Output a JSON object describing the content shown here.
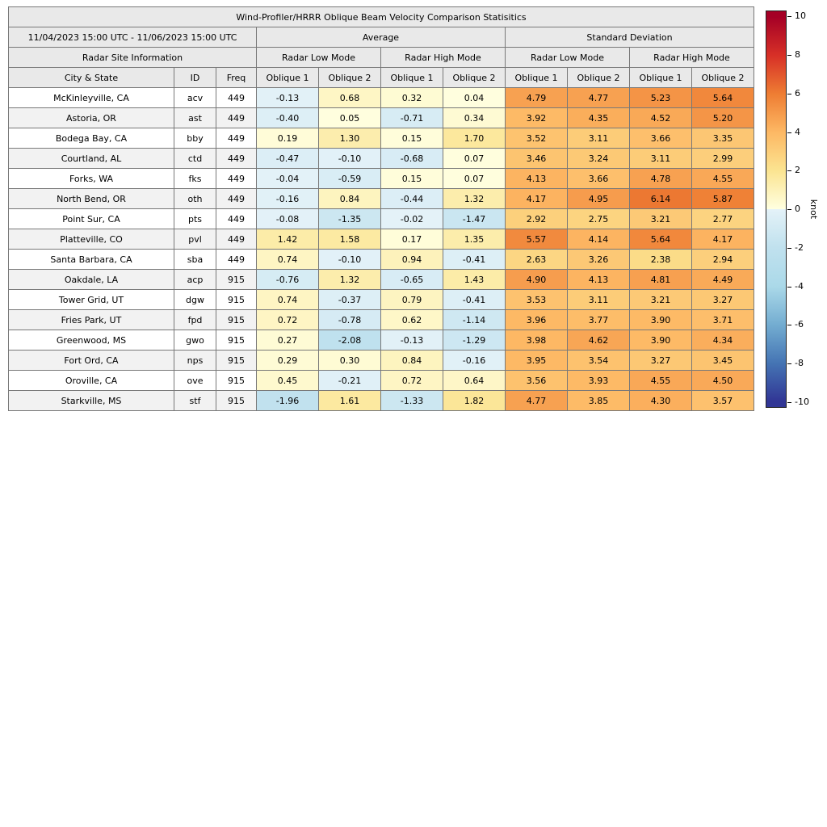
{
  "chart_data": {
    "type": "heatmap",
    "title": "Wind-Profiler/HRRR Oblique Beam Velocity Comparison Statisitics",
    "date_range": "11/04/2023 15:00 UTC - 11/06/2023 15:00 UTC",
    "headers": {
      "average": "Average",
      "standard_deviation": "Standard Deviation",
      "site_info": "Radar Site Information",
      "low_mode": "Radar Low Mode",
      "high_mode": "Radar High Mode",
      "city": "City & State",
      "id": "ID",
      "freq": "Freq",
      "oblique1": "Oblique 1",
      "oblique2": "Oblique 2"
    },
    "rows": [
      {
        "city": "McKinleyville, CA",
        "id": "acv",
        "freq": "449",
        "values": [
          -0.13,
          0.68,
          0.32,
          0.04,
          4.79,
          4.77,
          5.23,
          5.64
        ]
      },
      {
        "city": "Astoria, OR",
        "id": "ast",
        "freq": "449",
        "values": [
          -0.4,
          0.05,
          -0.71,
          0.34,
          3.92,
          4.35,
          4.52,
          5.2
        ]
      },
      {
        "city": "Bodega Bay, CA",
        "id": "bby",
        "freq": "449",
        "values": [
          0.19,
          1.3,
          0.15,
          1.7,
          3.52,
          3.11,
          3.66,
          3.35
        ]
      },
      {
        "city": "Courtland, AL",
        "id": "ctd",
        "freq": "449",
        "values": [
          -0.47,
          -0.1,
          -0.68,
          0.07,
          3.46,
          3.24,
          3.11,
          2.99
        ]
      },
      {
        "city": "Forks, WA",
        "id": "fks",
        "freq": "449",
        "values": [
          -0.04,
          -0.59,
          0.15,
          0.07,
          4.13,
          3.66,
          4.78,
          4.55
        ]
      },
      {
        "city": "North Bend, OR",
        "id": "oth",
        "freq": "449",
        "values": [
          -0.16,
          0.84,
          -0.44,
          1.32,
          4.17,
          4.95,
          6.14,
          5.87
        ]
      },
      {
        "city": "Point Sur, CA",
        "id": "pts",
        "freq": "449",
        "values": [
          -0.08,
          -1.35,
          -0.02,
          -1.47,
          2.92,
          2.75,
          3.21,
          2.77
        ]
      },
      {
        "city": "Platteville, CO",
        "id": "pvl",
        "freq": "449",
        "values": [
          1.42,
          1.58,
          0.17,
          1.35,
          5.57,
          4.14,
          5.64,
          4.17
        ]
      },
      {
        "city": "Santa Barbara, CA",
        "id": "sba",
        "freq": "449",
        "values": [
          0.74,
          -0.1,
          0.94,
          -0.41,
          2.63,
          3.26,
          2.38,
          2.94
        ]
      },
      {
        "city": "Oakdale, LA",
        "id": "acp",
        "freq": "915",
        "values": [
          -0.76,
          1.32,
          -0.65,
          1.43,
          4.9,
          4.13,
          4.81,
          4.49
        ]
      },
      {
        "city": "Tower Grid, UT",
        "id": "dgw",
        "freq": "915",
        "values": [
          0.74,
          -0.37,
          0.79,
          -0.41,
          3.53,
          3.11,
          3.21,
          3.27
        ]
      },
      {
        "city": "Fries Park, UT",
        "id": "fpd",
        "freq": "915",
        "values": [
          0.72,
          -0.78,
          0.62,
          -1.14,
          3.96,
          3.77,
          3.9,
          3.71
        ]
      },
      {
        "city": "Greenwood, MS",
        "id": "gwo",
        "freq": "915",
        "values": [
          0.27,
          -2.08,
          -0.13,
          -1.29,
          3.98,
          4.62,
          3.9,
          4.34
        ]
      },
      {
        "city": "Fort Ord, CA",
        "id": "nps",
        "freq": "915",
        "values": [
          0.29,
          0.3,
          0.84,
          -0.16,
          3.95,
          3.54,
          3.27,
          3.45
        ]
      },
      {
        "city": "Oroville, CA",
        "id": "ove",
        "freq": "915",
        "values": [
          0.45,
          -0.21,
          0.72,
          0.64,
          3.56,
          3.93,
          4.55,
          4.5
        ]
      },
      {
        "city": "Starkville, MS",
        "id": "stf",
        "freq": "915",
        "values": [
          -1.96,
          1.61,
          -1.33,
          1.82,
          4.77,
          3.85,
          4.3,
          3.57
        ]
      }
    ],
    "colorbar": {
      "label": "knot",
      "ticks": [
        10,
        8,
        6,
        4,
        2,
        0,
        -2,
        -4,
        -6,
        -8,
        -10
      ],
      "range_min": -10.3,
      "range_max": 10.3,
      "scale": [
        {
          "v": -10,
          "c": "#313695"
        },
        {
          "v": -8,
          "c": "#4575b4"
        },
        {
          "v": -6,
          "c": "#74add1"
        },
        {
          "v": -4,
          "c": "#abd9e9"
        },
        {
          "v": -2,
          "c": "#c0e1ee"
        },
        {
          "v": 0,
          "c": "#e4f2f8",
          "side": "neg"
        },
        {
          "v": 0,
          "c": "#ffffe0",
          "side": "pos"
        },
        {
          "v": 2,
          "c": "#fbe491"
        },
        {
          "v": 4,
          "c": "#fdb864"
        },
        {
          "v": 6,
          "c": "#ee7d33"
        },
        {
          "v": 8,
          "c": "#d73027"
        },
        {
          "v": 10,
          "c": "#a50026"
        }
      ]
    }
  }
}
